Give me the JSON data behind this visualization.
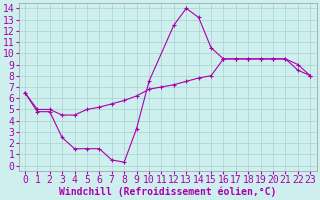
{
  "xlabel": "Windchill (Refroidissement éolien,°C)",
  "background_color": "#cdf0ef",
  "line_color": "#aa00aa",
  "grid_color": "#aacfcf",
  "xlim": [
    -0.5,
    23.5
  ],
  "ylim": [
    -0.5,
    14.5
  ],
  "xticks": [
    0,
    1,
    2,
    3,
    4,
    5,
    6,
    7,
    8,
    9,
    10,
    11,
    12,
    13,
    14,
    15,
    16,
    17,
    18,
    19,
    20,
    21,
    22,
    23
  ],
  "yticks": [
    0,
    1,
    2,
    3,
    4,
    5,
    6,
    7,
    8,
    9,
    10,
    11,
    12,
    13,
    14
  ],
  "line1_x": [
    0,
    1,
    2,
    3,
    4,
    5,
    6,
    7,
    8,
    9,
    10,
    11,
    12,
    13,
    14,
    15,
    16,
    17,
    18,
    19,
    20,
    21,
    22,
    23
  ],
  "line1_y": [
    6.5,
    5.0,
    5.0,
    4.5,
    4.5,
    5.0,
    5.2,
    5.5,
    5.8,
    6.2,
    6.8,
    7.0,
    7.2,
    7.5,
    7.8,
    8.0,
    9.5,
    9.5,
    9.5,
    9.5,
    9.5,
    9.5,
    9.0,
    8.0
  ],
  "line2_x": [
    0,
    1,
    2,
    3,
    4,
    5,
    6,
    7,
    8,
    9,
    10,
    12,
    13,
    14,
    15,
    16,
    17,
    18,
    19,
    20,
    21,
    22,
    23
  ],
  "line2_y": [
    6.5,
    4.8,
    4.8,
    2.5,
    1.5,
    1.5,
    1.5,
    0.5,
    0.3,
    3.3,
    7.5,
    12.5,
    14.0,
    13.2,
    10.5,
    9.5,
    9.5,
    9.5,
    9.5,
    9.5,
    9.5,
    8.5,
    8.0
  ],
  "xlabel_fontsize": 7,
  "tick_fontsize": 7
}
